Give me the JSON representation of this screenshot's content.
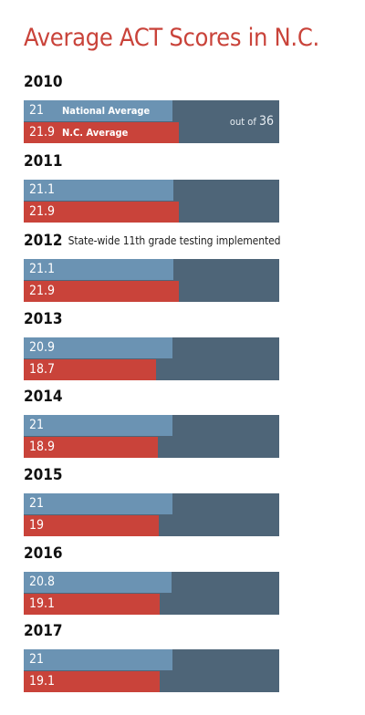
{
  "title": "Average ACT Scores in N.C.",
  "series_names": {
    "national": "National Average",
    "nc": "N.C. Average"
  },
  "scale": {
    "prefix": "out of",
    "max_label": "36"
  },
  "note_2012": "State-wide 11th grade testing implemented",
  "years": [
    {
      "year": "2010",
      "national": "21",
      "nc": "21.9"
    },
    {
      "year": "2011",
      "national": "21.1",
      "nc": "21.9"
    },
    {
      "year": "2012",
      "national": "21.1",
      "nc": "21.9"
    },
    {
      "year": "2013",
      "national": "20.9",
      "nc": "18.7"
    },
    {
      "year": "2014",
      "national": "21",
      "nc": "18.9"
    },
    {
      "year": "2015",
      "national": "21",
      "nc": "19"
    },
    {
      "year": "2016",
      "national": "20.8",
      "nc": "19.1"
    },
    {
      "year": "2017",
      "national": "21",
      "nc": "19.1"
    }
  ],
  "chart_data": {
    "type": "bar",
    "title": "Average ACT Scores in N.C.",
    "categories": [
      "2010",
      "2011",
      "2012",
      "2013",
      "2014",
      "2015",
      "2016",
      "2017"
    ],
    "series": [
      {
        "name": "National Average",
        "values": [
          21,
          21.1,
          21.1,
          20.9,
          21,
          21,
          20.8,
          21
        ]
      },
      {
        "name": "N.C. Average",
        "values": [
          21.9,
          21.9,
          21.9,
          18.7,
          18.9,
          19,
          19.1,
          19.1
        ]
      }
    ],
    "xlim": [
      0,
      36
    ],
    "annotations": [
      {
        "category": "2012",
        "text": "State-wide 11th grade testing implemented"
      }
    ],
    "colors": {
      "national": "#6b93b3",
      "nc": "#c9433a",
      "track": "#4e6578",
      "title": "#c9433a"
    }
  }
}
